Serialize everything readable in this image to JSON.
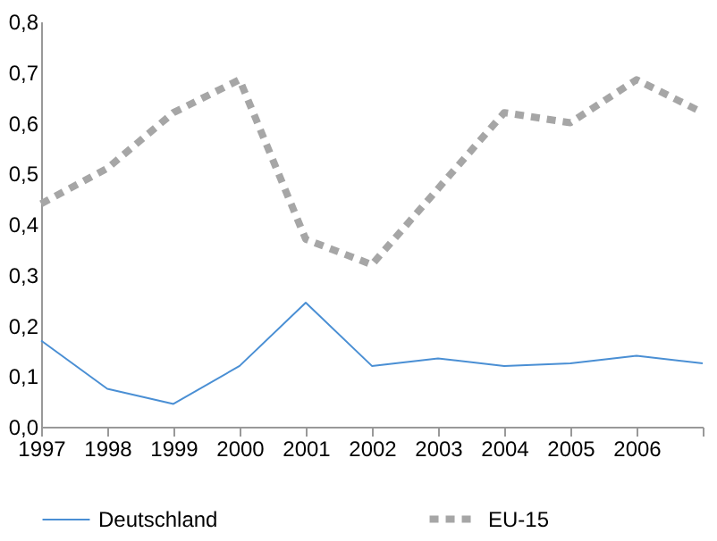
{
  "chart_data": {
    "type": "line",
    "categories": [
      "1997",
      "1998",
      "1999",
      "2000",
      "2001",
      "2002",
      "2003",
      "2004",
      "2005",
      "2006",
      null
    ],
    "series": [
      {
        "name": "Deutschland",
        "color": "#4a8fd4",
        "line_style": "solid",
        "values": [
          0.17,
          0.075,
          0.045,
          0.12,
          0.245,
          0.12,
          0.135,
          0.12,
          0.125,
          0.14,
          0.125
        ]
      },
      {
        "name": "EU-15",
        "color": "#a6a6a6",
        "line_style": "dashed",
        "values": [
          0.44,
          0.51,
          0.62,
          0.685,
          0.37,
          0.32,
          0.47,
          0.62,
          0.6,
          0.685,
          0.62
        ]
      }
    ],
    "ylim": [
      0,
      0.8
    ],
    "yticks": [
      {
        "value": 0,
        "label": "0,0"
      },
      {
        "value": 0.1,
        "label": "0,1"
      },
      {
        "value": 0.2,
        "label": "0,2"
      },
      {
        "value": 0.3,
        "label": "0,3"
      },
      {
        "value": 0.4,
        "label": "0,4"
      },
      {
        "value": 0.5,
        "label": "0,5"
      },
      {
        "value": 0.6,
        "label": "0,6"
      },
      {
        "value": 0.7,
        "label": "0,7"
      },
      {
        "value": 0.8,
        "label": "0,8"
      }
    ],
    "grid": false,
    "legend": "bottom",
    "marker": "none"
  }
}
